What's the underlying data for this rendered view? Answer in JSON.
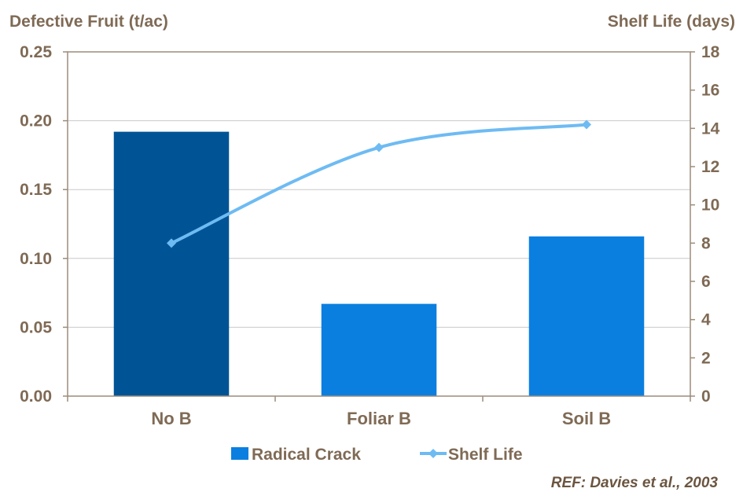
{
  "chart_data": {
    "type": "bar",
    "categories": [
      "No B",
      "Foliar B",
      "Soil B"
    ],
    "series": [
      {
        "name": "Radical Crack",
        "type": "bar",
        "axis": "left",
        "values": [
          0.192,
          0.067,
          0.116
        ],
        "colors": [
          "#005495",
          "#0A7FE0",
          "#0A7FE0"
        ]
      },
      {
        "name": "Shelf Life",
        "type": "line",
        "axis": "right",
        "values": [
          8,
          13,
          14.2
        ],
        "color": "#6EBBF3"
      }
    ],
    "ylabel": "Defective Fruit (t/ac)",
    "y2label": "Shelf Life (days)",
    "ylim": [
      0,
      0.25
    ],
    "y2lim": [
      0,
      18
    ],
    "yticks": [
      "0.00",
      "0.05",
      "0.10",
      "0.15",
      "0.20",
      "0.25"
    ],
    "y2ticks": [
      "0",
      "2",
      "4",
      "6",
      "8",
      "10",
      "12",
      "14",
      "16",
      "18"
    ],
    "grid": true,
    "legend": "bottom",
    "annotation": "REF: Davies et al., 2003",
    "colors": {
      "text": "#7F6A55",
      "ref": "#6B5540",
      "axis": "#9C8C7A",
      "grid": "#C9C9C9"
    }
  }
}
